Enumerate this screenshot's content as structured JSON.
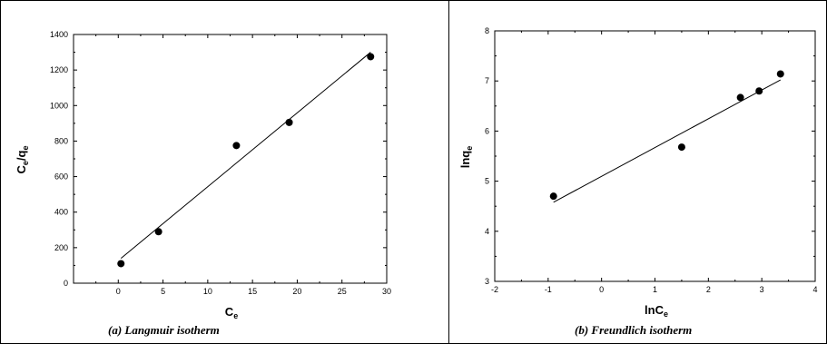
{
  "chart_data": [
    {
      "type": "scatter",
      "xlabel_main": "C",
      "xlabel_sub": "e",
      "ylabel_main": "C",
      "ylabel_mid": "e",
      "ylabel_slash": "/q",
      "ylabel_sub": "e",
      "caption": "(a) Langmuir isotherm",
      "xlim": [
        -5,
        30
      ],
      "ylim": [
        0,
        1400
      ],
      "xticks": [
        0,
        5,
        10,
        15,
        20,
        25,
        30
      ],
      "xtick_labels": [
        "0",
        "5",
        "10",
        "15",
        "20",
        "25",
        "30"
      ],
      "yticks": [
        0,
        200,
        400,
        600,
        800,
        1000,
        1200,
        1400
      ],
      "ytick_labels": [
        "0",
        "200",
        "400",
        "600",
        "800",
        "1000",
        "1200",
        "1400"
      ],
      "grid": false,
      "points": [
        {
          "x": 0.3,
          "y": 110
        },
        {
          "x": 4.5,
          "y": 290
        },
        {
          "x": 13.2,
          "y": 775
        },
        {
          "x": 19.1,
          "y": 905
        },
        {
          "x": 28.2,
          "y": 1275
        }
      ],
      "fit_line": [
        {
          "x": 0.3,
          "y": 140
        },
        {
          "x": 28.2,
          "y": 1300
        }
      ]
    },
    {
      "type": "scatter",
      "xlabel_main": "lnC",
      "xlabel_sub": "e",
      "ylabel_main": "lnq",
      "ylabel_sub": "e",
      "caption": "(b) Freundlich isotherm",
      "xlim": [
        -2,
        4
      ],
      "ylim": [
        3,
        8
      ],
      "xticks": [
        -2,
        -1,
        0,
        1,
        2,
        3,
        4
      ],
      "xtick_labels": [
        "-2",
        "-1",
        "0",
        "1",
        "2",
        "3",
        "4"
      ],
      "yticks": [
        3,
        4,
        5,
        6,
        7,
        8
      ],
      "ytick_labels": [
        "3",
        "4",
        "5",
        "6",
        "7",
        "8"
      ],
      "grid": false,
      "points": [
        {
          "x": -0.9,
          "y": 4.7
        },
        {
          "x": 1.5,
          "y": 5.68
        },
        {
          "x": 2.6,
          "y": 6.67
        },
        {
          "x": 2.95,
          "y": 6.8
        },
        {
          "x": 3.35,
          "y": 7.14
        }
      ],
      "fit_line": [
        {
          "x": -0.9,
          "y": 4.58
        },
        {
          "x": 3.35,
          "y": 7.02
        }
      ]
    }
  ]
}
